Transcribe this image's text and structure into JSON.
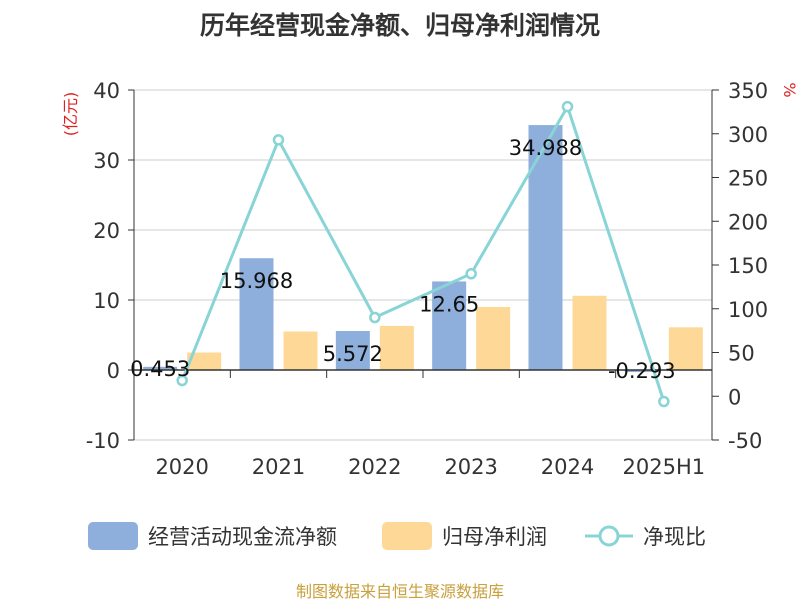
{
  "title": "历年经营现金净额、归母净利润情况",
  "source": "制图数据来自恒生聚源数据库",
  "colors": {
    "cash_flow": "#8eaedb",
    "net_profit": "#fdd896",
    "ratio": "#88d4d6",
    "axis_unit": "#e02020",
    "grid": "#cccccc",
    "axis": "#333333",
    "source": "#c8a03c"
  },
  "chart_data": {
    "type": "bar",
    "categories": [
      "2020",
      "2021",
      "2022",
      "2023",
      "2024",
      "2025H1"
    ],
    "left_axis": {
      "unit": "(亿元)",
      "ylim": [
        -10,
        40
      ],
      "ticks": [
        "40",
        "30",
        "20",
        "10",
        "0",
        "-10"
      ]
    },
    "right_axis": {
      "unit": "%",
      "ylim": [
        -50,
        350
      ],
      "ticks": [
        "350",
        "300",
        "250",
        "200",
        "150",
        "100",
        "50",
        "0",
        "-50"
      ]
    },
    "grid": true,
    "legend_position": "bottom",
    "series": [
      {
        "name": "经营活动现金流净额",
        "type": "bar",
        "axis": "left",
        "values": [
          0.453,
          15.968,
          5.572,
          12.65,
          34.988,
          -0.293
        ],
        "labels": [
          "0.453",
          "15.968",
          "5.572",
          "12.65",
          "34.988",
          "-0.293"
        ]
      },
      {
        "name": "归母净利润",
        "type": "bar",
        "axis": "left",
        "values": [
          2.5,
          5.5,
          6.3,
          9.0,
          10.6,
          6.1
        ]
      },
      {
        "name": "净现比",
        "type": "line",
        "axis": "right",
        "values": [
          18,
          293,
          90,
          140,
          331,
          -6
        ]
      }
    ]
  }
}
